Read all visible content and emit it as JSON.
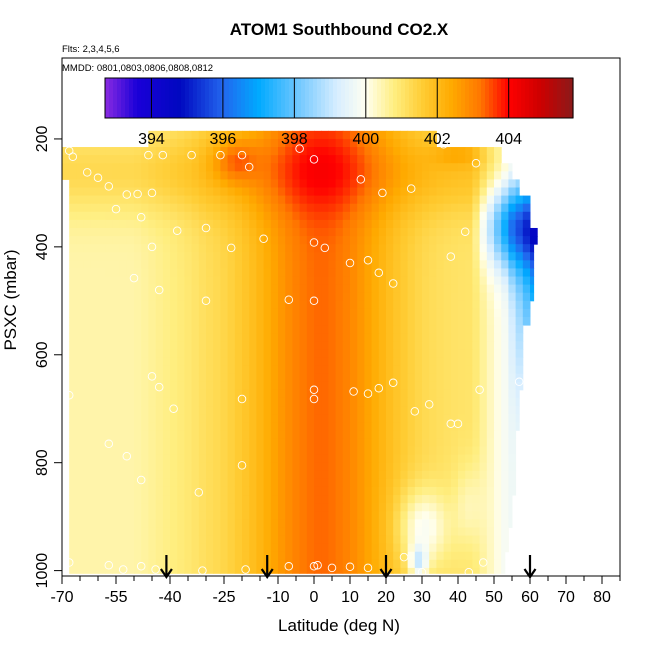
{
  "chart_data": {
    "type": "heatmap",
    "title": "ATOM1 Southbound CO2.X",
    "flights_note": "Flts: 2,3,4,5,6",
    "dates_note": "MMDD: 0801,0803,0806,0808,0812",
    "xlabel": "Latitude (deg N)",
    "ylabel": "PSXC (mbar)",
    "xlim": [
      -70,
      85
    ],
    "ylim": [
      1010,
      50
    ],
    "y_reversed": true,
    "x_ticks": [
      -70,
      -55,
      -40,
      -25,
      -10,
      0,
      10,
      20,
      30,
      40,
      50,
      60,
      70,
      80
    ],
    "x_minor_ticks": [
      -65,
      -60,
      -50,
      -45,
      -35,
      -30,
      -20,
      -15,
      -5,
      5,
      15,
      25,
      35,
      45,
      55,
      65,
      75,
      85
    ],
    "y_ticks": [
      200,
      400,
      600,
      800,
      1000
    ],
    "colorbar": {
      "ticks": [
        394,
        396,
        398,
        400,
        402,
        404
      ],
      "range": [
        392.7,
        405.8
      ],
      "stops": [
        {
          "v": 392.7,
          "c": "#8a2be2"
        },
        {
          "v": 393.6,
          "c": "#1a00d8"
        },
        {
          "v": 394.8,
          "c": "#0008c0"
        },
        {
          "v": 396.0,
          "c": "#2266ee"
        },
        {
          "v": 397.0,
          "c": "#00aaff"
        },
        {
          "v": 398.0,
          "c": "#66c4ff"
        },
        {
          "v": 399.2,
          "c": "#d8eeff"
        },
        {
          "v": 400.0,
          "c": "#fffff0"
        },
        {
          "v": 400.8,
          "c": "#ffee80"
        },
        {
          "v": 401.6,
          "c": "#ffcc33"
        },
        {
          "v": 402.4,
          "c": "#ffaa00"
        },
        {
          "v": 403.2,
          "c": "#ff7700"
        },
        {
          "v": 404.0,
          "c": "#ff0000"
        },
        {
          "v": 404.9,
          "c": "#cc0000"
        },
        {
          "v": 405.8,
          "c": "#8b1a1a"
        }
      ]
    },
    "arrows_lat": [
      -41,
      -13,
      20,
      60
    ],
    "samples": [
      {
        "lat": -68,
        "p": 222
      },
      {
        "lat": -67,
        "p": 233
      },
      {
        "lat": -63,
        "p": 262
      },
      {
        "lat": -60,
        "p": 272
      },
      {
        "lat": -57,
        "p": 288
      },
      {
        "lat": -55,
        "p": 330
      },
      {
        "lat": -52,
        "p": 303
      },
      {
        "lat": -49,
        "p": 302
      },
      {
        "lat": -46,
        "p": 230
      },
      {
        "lat": -45,
        "p": 300
      },
      {
        "lat": -42,
        "p": 230
      },
      {
        "lat": -38,
        "p": 370
      },
      {
        "lat": -34,
        "p": 230
      },
      {
        "lat": -30,
        "p": 365
      },
      {
        "lat": -26,
        "p": 230
      },
      {
        "lat": -20,
        "p": 230
      },
      {
        "lat": -18,
        "p": 252
      },
      {
        "lat": -14,
        "p": 385
      },
      {
        "lat": -4,
        "p": 218
      },
      {
        "lat": 0,
        "p": 238
      },
      {
        "lat": 13,
        "p": 275
      },
      {
        "lat": 19,
        "p": 300
      },
      {
        "lat": 27,
        "p": 292
      },
      {
        "lat": 35,
        "p": 180
      },
      {
        "lat": 36,
        "p": 210
      },
      {
        "lat": 45,
        "p": 245
      },
      {
        "lat": 42,
        "p": 372
      },
      {
        "lat": 38,
        "p": 418
      },
      {
        "lat": -48,
        "p": 345
      },
      {
        "lat": -45,
        "p": 400
      },
      {
        "lat": -23,
        "p": 402
      },
      {
        "lat": -30,
        "p": 500
      },
      {
        "lat": -50,
        "p": 458
      },
      {
        "lat": -43,
        "p": 480
      },
      {
        "lat": 0,
        "p": 392
      },
      {
        "lat": 3,
        "p": 402
      },
      {
        "lat": 10,
        "p": 430
      },
      {
        "lat": 15,
        "p": 425
      },
      {
        "lat": 18,
        "p": 448
      },
      {
        "lat": 22,
        "p": 468
      },
      {
        "lat": -7,
        "p": 498
      },
      {
        "lat": 0,
        "p": 500
      },
      {
        "lat": -45,
        "p": 640
      },
      {
        "lat": -43,
        "p": 660
      },
      {
        "lat": -39,
        "p": 700
      },
      {
        "lat": -20,
        "p": 682
      },
      {
        "lat": 0,
        "p": 665
      },
      {
        "lat": 0,
        "p": 682
      },
      {
        "lat": 11,
        "p": 668
      },
      {
        "lat": 15,
        "p": 672
      },
      {
        "lat": 18,
        "p": 662
      },
      {
        "lat": 22,
        "p": 652
      },
      {
        "lat": 32,
        "p": 692
      },
      {
        "lat": 38,
        "p": 728
      },
      {
        "lat": 46,
        "p": 665
      },
      {
        "lat": 57,
        "p": 650
      },
      {
        "lat": -68,
        "p": 675
      },
      {
        "lat": -57,
        "p": 765
      },
      {
        "lat": -52,
        "p": 788
      },
      {
        "lat": -48,
        "p": 832
      },
      {
        "lat": -32,
        "p": 855
      },
      {
        "lat": -20,
        "p": 805
      },
      {
        "lat": 28,
        "p": 705
      },
      {
        "lat": 40,
        "p": 728
      },
      {
        "lat": -68,
        "p": 985
      },
      {
        "lat": -57,
        "p": 990
      },
      {
        "lat": -53,
        "p": 998
      },
      {
        "lat": -48,
        "p": 992
      },
      {
        "lat": -44,
        "p": 998
      },
      {
        "lat": -31,
        "p": 1000
      },
      {
        "lat": -19,
        "p": 998
      },
      {
        "lat": -7,
        "p": 992
      },
      {
        "lat": 0,
        "p": 992
      },
      {
        "lat": 1,
        "p": 990
      },
      {
        "lat": 5,
        "p": 995
      },
      {
        "lat": 10,
        "p": 993
      },
      {
        "lat": 15,
        "p": 995
      },
      {
        "lat": 25,
        "p": 975
      },
      {
        "lat": 30,
        "p": 1003
      },
      {
        "lat": 43,
        "p": 1003
      },
      {
        "lat": 47,
        "p": 985
      }
    ]
  }
}
